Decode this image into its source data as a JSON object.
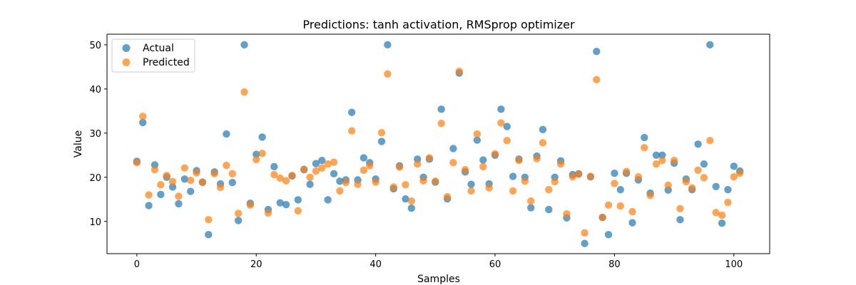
{
  "chart_data": {
    "type": "scatter",
    "title": "Predictions: tanh activation, RMSprop optimizer",
    "xlabel": "Samples",
    "ylabel": "Value",
    "xlim": [
      -5,
      106
    ],
    "ylim": [
      2.7,
      52.4
    ],
    "xticks": [
      0,
      20,
      40,
      60,
      80,
      100
    ],
    "yticks": [
      10,
      20,
      30,
      40,
      50
    ],
    "grid": false,
    "legend": "upper-left",
    "series": [
      {
        "name": "Actual",
        "color": "#1f77b4",
        "values": [
          23.6,
          32.4,
          13.6,
          22.8,
          16.1,
          20.0,
          17.8,
          14.0,
          19.6,
          16.8,
          21.5,
          18.9,
          7.0,
          21.2,
          18.5,
          29.8,
          18.8,
          10.2,
          50.0,
          14.1,
          25.2,
          29.1,
          12.7,
          22.4,
          14.2,
          13.8,
          20.3,
          14.9,
          21.7,
          18.4,
          23.1,
          23.8,
          14.9,
          20.8,
          19.1,
          19.4,
          34.7,
          19.4,
          24.4,
          23.3,
          19.6,
          28.1,
          50.0,
          17.4,
          22.6,
          15.1,
          13.0,
          24.1,
          20.0,
          24.1,
          18.9,
          35.4,
          15.1,
          26.5,
          43.6,
          21.2,
          18.4,
          28.4,
          23.9,
          18.5,
          25.0,
          35.4,
          31.5,
          20.2,
          24.1,
          20.0,
          13.1,
          24.8,
          30.8,
          12.7,
          20.0,
          23.7,
          10.8,
          20.6,
          20.8,
          5.0,
          20.1,
          48.5,
          10.9,
          7.0,
          20.9,
          17.2,
          20.9,
          9.7,
          19.4,
          29.0,
          16.4,
          25.0,
          25.0,
          17.1,
          23.2,
          10.4,
          19.6,
          17.2,
          27.5,
          23.0,
          50.0,
          17.9,
          9.6,
          17.2,
          22.5,
          21.4
        ]
      },
      {
        "name": "Predicted",
        "color": "#ff7f0e",
        "values": [
          23.3,
          33.8,
          16.0,
          21.7,
          18.3,
          20.4,
          19.0,
          15.7,
          22.1,
          19.3,
          21.0,
          18.8,
          10.4,
          20.8,
          17.7,
          22.7,
          20.8,
          11.8,
          39.3,
          13.7,
          24.0,
          25.4,
          11.9,
          20.6,
          19.8,
          19.2,
          20.4,
          12.4,
          21.8,
          20.0,
          21.4,
          22.1,
          23.0,
          23.4,
          16.9,
          18.8,
          30.5,
          18.4,
          21.6,
          22.6,
          18.9,
          30.1,
          43.4,
          17.8,
          22.3,
          18.3,
          14.6,
          23.0,
          19.2,
          24.4,
          19.1,
          32.2,
          15.6,
          23.3,
          44.0,
          21.7,
          16.9,
          29.8,
          22.4,
          17.6,
          25.3,
          32.3,
          28.3,
          16.9,
          23.8,
          19.1,
          14.6,
          24.2,
          27.8,
          17.2,
          19.0,
          23.0,
          11.7,
          20.1,
          20.7,
          7.4,
          20.2,
          42.1,
          10.9,
          13.7,
          18.6,
          13.5,
          21.3,
          12.2,
          20.1,
          26.7,
          15.9,
          23.0,
          23.8,
          18.2,
          23.8,
          12.9,
          19.0,
          17.6,
          21.6,
          19.9,
          28.3,
          12.0,
          11.4,
          14.3,
          20.1,
          20.9
        ]
      }
    ]
  }
}
